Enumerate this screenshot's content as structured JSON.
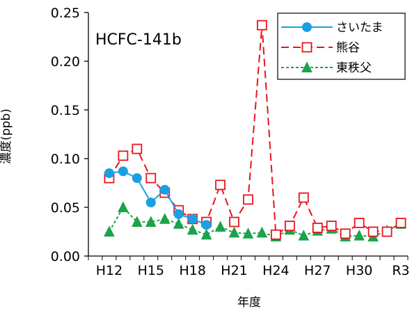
{
  "chart_data": {
    "type": "line",
    "title": "",
    "annotation": "HCFC-141b",
    "xlabel": "年度",
    "ylabel": "濃度(ppb)",
    "ylim": [
      0,
      0.25
    ],
    "yticks": [
      "0.00",
      "0.05",
      "0.10",
      "0.15",
      "0.20",
      "0.25"
    ],
    "x": [
      "H11",
      "H12",
      "H13",
      "H14",
      "H15",
      "H16",
      "H17",
      "H18",
      "H19",
      "H20",
      "H21",
      "H22",
      "H23",
      "H24",
      "H25",
      "H26",
      "H27",
      "H28",
      "H29",
      "H30",
      "R1",
      "R2",
      "R3"
    ],
    "xtick_labels": [
      {
        "x": "H12",
        "label": "H12"
      },
      {
        "x": "H15",
        "label": "H15"
      },
      {
        "x": "H18",
        "label": "H18"
      },
      {
        "x": "H21",
        "label": "H21"
      },
      {
        "x": "H24",
        "label": "H24"
      },
      {
        "x": "H27",
        "label": "H27"
      },
      {
        "x": "H30",
        "label": "H30"
      },
      {
        "x": "R3",
        "label": "R3"
      }
    ],
    "grid": false,
    "legend_position": "top-right",
    "series": [
      {
        "name": "さいたま",
        "color": "#1aa0e0",
        "marker": "circle",
        "dash": "solid",
        "values": [
          null,
          0.085,
          0.087,
          0.08,
          0.055,
          0.068,
          0.043,
          0.038,
          0.032,
          null,
          null,
          null,
          null,
          null,
          null,
          null,
          null,
          null,
          null,
          null,
          null,
          null,
          null
        ]
      },
      {
        "name": "熊谷",
        "color": "#e8141c",
        "marker": "square-open",
        "dash": "long-dash",
        "values": [
          null,
          0.08,
          0.103,
          0.11,
          0.08,
          0.065,
          0.047,
          0.038,
          0.035,
          0.073,
          0.035,
          0.058,
          0.237,
          0.022,
          0.031,
          0.06,
          0.029,
          0.031,
          0.023,
          0.034,
          0.025,
          0.025,
          0.034
        ]
      },
      {
        "name": "東秩父",
        "color": "#1aa34a",
        "marker": "triangle",
        "dash": "short-dash",
        "values": [
          null,
          0.025,
          0.05,
          0.035,
          0.035,
          0.038,
          0.033,
          0.027,
          0.022,
          0.03,
          0.024,
          0.023,
          0.024,
          0.02,
          0.027,
          0.021,
          0.026,
          0.028,
          0.02,
          0.021,
          0.02,
          0.026,
          0.033
        ]
      }
    ]
  }
}
